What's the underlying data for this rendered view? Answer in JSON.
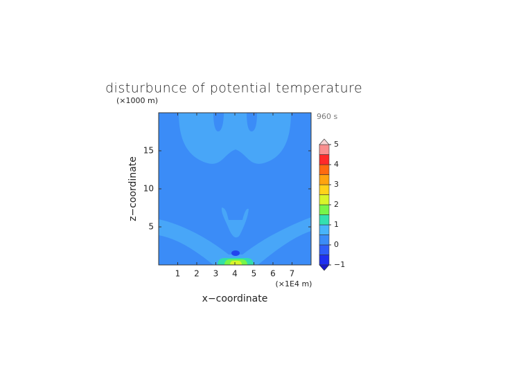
{
  "chart_data": {
    "type": "contour",
    "title": "disturbunce of potential temperature",
    "y_unit": "(×1000 m)",
    "time_label": "960 s",
    "xlabel": "x−coordinate",
    "ylabel": "z−coordinate",
    "x_unit": "(×1E4 m)",
    "xlim": [
      0,
      8
    ],
    "ylim": [
      0,
      20
    ],
    "xticks": [
      1,
      2,
      3,
      4,
      5,
      6,
      7
    ],
    "yticks": [
      5,
      10,
      15
    ],
    "colorbar": {
      "levels": [
        -1,
        -0.5,
        0,
        0.5,
        1,
        1.5,
        2,
        2.5,
        3,
        3.5,
        4,
        4.5,
        5
      ],
      "colors": [
        "#1f2ff0",
        "#2f5ef8",
        "#3b8cf7",
        "#48b4fa",
        "#33e0b0",
        "#77f54a",
        "#d8f52a",
        "#ffd21a",
        "#ffa30f",
        "#ff6a10",
        "#ff2a2a",
        "#fa8f8f"
      ],
      "under_color": "#1a1acc",
      "over_color": "#f8d6d6",
      "ticks": [
        {
          "value": -1,
          "label": "−1"
        },
        0,
        1,
        2,
        3,
        4,
        5
      ]
    }
  }
}
